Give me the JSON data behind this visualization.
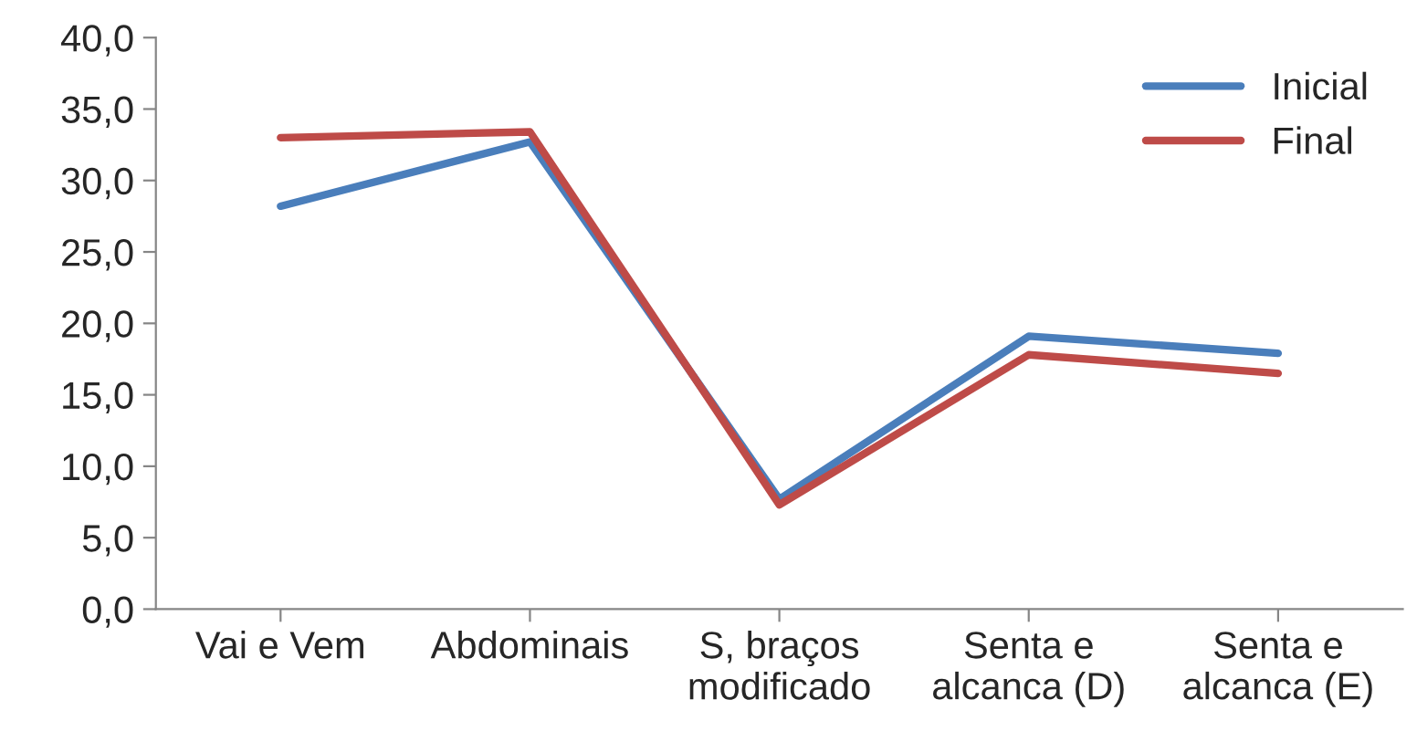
{
  "chart_data": {
    "type": "line",
    "categories": [
      "Vai e Vem",
      "Abdominais",
      "S, braços\nmodificado",
      "Senta e\nalcanca (D)",
      "Senta e\nalcanca (E)"
    ],
    "series": [
      {
        "name": "Inicial",
        "color": "#4a7ebb",
        "values": [
          28.2,
          32.7,
          7.7,
          19.1,
          17.9
        ]
      },
      {
        "name": "Final",
        "color": "#be4b48",
        "values": [
          33.0,
          33.4,
          7.3,
          17.8,
          16.5
        ]
      }
    ],
    "ylim": [
      0,
      40
    ],
    "yticks": [
      {
        "value": 0,
        "label": "0,0"
      },
      {
        "value": 5,
        "label": "5,0"
      },
      {
        "value": 10,
        "label": "10,0"
      },
      {
        "value": 15,
        "label": "15,0"
      },
      {
        "value": 20,
        "label": "20,0"
      },
      {
        "value": 25,
        "label": "25,0"
      },
      {
        "value": 30,
        "label": "30,0"
      },
      {
        "value": 35,
        "label": "35,0"
      },
      {
        "value": 40,
        "label": "40,0"
      }
    ],
    "grid": false,
    "legend": "top right",
    "marker": "none",
    "line_style": "solid"
  }
}
